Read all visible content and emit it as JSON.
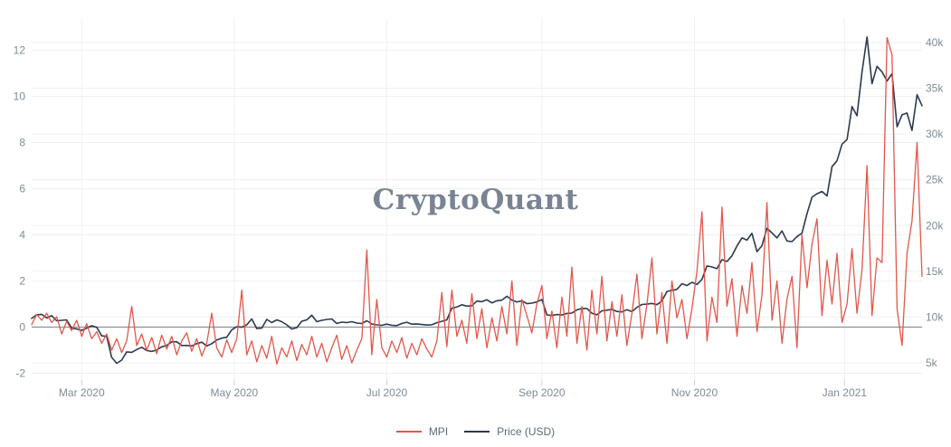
{
  "watermark": "CryptoQuant",
  "chart_data": {
    "type": "line",
    "title": "",
    "x_start": "2020-02-10",
    "step_days": 2,
    "x_ticks": [
      {
        "label": "Mar 2020",
        "day": 20
      },
      {
        "label": "May 2020",
        "day": 81
      },
      {
        "label": "Jul 2020",
        "day": 142
      },
      {
        "label": "Sep 2020",
        "day": 204
      },
      {
        "label": "Nov 2020",
        "day": 265
      },
      {
        "label": "Jan 2021",
        "day": 325
      }
    ],
    "left_axis": {
      "tick_labels": [
        "12",
        "10",
        "8",
        "6",
        "4",
        "2",
        "0",
        "-2"
      ],
      "tick_values": [
        12,
        10,
        8,
        6,
        4,
        2,
        0,
        -2
      ],
      "zero_plot_line": 0
    },
    "right_axis": {
      "tick_labels": [
        "40k",
        "35k",
        "30k",
        "25k",
        "20k",
        "15k",
        "10k",
        "5k"
      ],
      "tick_values": [
        40000,
        35000,
        30000,
        25000,
        20000,
        15000,
        10000,
        5000
      ]
    },
    "grid": true,
    "legend_position": "bottom",
    "legend": [
      {
        "label": "MPI",
        "color": "#e2574a"
      },
      {
        "label": "Price (USD)",
        "color": "#2c3a4e"
      }
    ],
    "series": [
      {
        "name": "MPI",
        "axis": "left",
        "color": "#e2574a",
        "values": [
          0.1,
          0.55,
          0.3,
          0.6,
          0.2,
          0.45,
          -0.3,
          0.25,
          -0.15,
          0.3,
          -0.4,
          0.15,
          -0.5,
          -0.2,
          -0.7,
          -0.3,
          -1.0,
          -0.5,
          -1.1,
          -0.6,
          0.9,
          -0.8,
          -0.3,
          -1.0,
          -0.45,
          -1.15,
          -0.35,
          -0.95,
          -0.4,
          -1.2,
          -0.6,
          -0.25,
          -1.05,
          -0.5,
          -1.25,
          -0.7,
          0.6,
          -0.9,
          -1.3,
          -0.55,
          -1.1,
          -0.5,
          1.6,
          -1.2,
          -0.6,
          -1.5,
          -0.8,
          -1.35,
          -0.4,
          -1.6,
          -0.9,
          -1.3,
          -0.6,
          -1.45,
          -0.75,
          -1.2,
          -0.4,
          -1.3,
          -0.7,
          -1.5,
          -0.9,
          -0.35,
          -1.4,
          -0.8,
          -1.55,
          -1.0,
          -0.5,
          3.35,
          -1.2,
          1.2,
          -0.9,
          -1.3,
          -0.6,
          -1.1,
          -0.45,
          -1.35,
          -0.7,
          -1.2,
          -0.5,
          -0.95,
          -1.3,
          -0.6,
          1.5,
          -0.85,
          1.6,
          -0.4,
          0.3,
          -0.7,
          1.45,
          -0.5,
          0.8,
          -0.9,
          0.4,
          -0.6,
          0.9,
          -0.3,
          2.0,
          -0.8,
          1.2,
          0.5,
          -0.25,
          1.0,
          1.8,
          -0.5,
          0.7,
          -0.9,
          1.3,
          -0.4,
          2.6,
          -0.7,
          0.9,
          -1.0,
          1.6,
          -0.3,
          2.2,
          -0.6,
          1.1,
          -0.4,
          1.4,
          -0.8,
          0.6,
          2.3,
          -0.5,
          1.0,
          3.0,
          -0.3,
          1.5,
          -0.7,
          2.0,
          0.4,
          1.2,
          -0.5,
          0.8,
          2.4,
          5.0,
          -0.6,
          1.3,
          0.2,
          5.2,
          0.9,
          2.1,
          -0.4,
          1.8,
          0.6,
          2.8,
          -0.2,
          1.4,
          5.4,
          0.3,
          2.0,
          -0.7,
          1.2,
          2.2,
          -0.9,
          4.0,
          1.7,
          3.6,
          4.7,
          0.5,
          2.9,
          1.0,
          3.2,
          0.2,
          1.0,
          3.4,
          0.6,
          2.5,
          7.0,
          0.5,
          3.0,
          2.8,
          12.55,
          11.8,
          0.8,
          -0.8,
          3.2,
          4.6,
          8.0,
          2.2
        ]
      },
      {
        "name": "Price (USD)",
        "axis": "right",
        "color": "#2c3a4e",
        "values": [
          9850,
          10250,
          10300,
          9900,
          10150,
          9600,
          9650,
          9700,
          8800,
          8700,
          8550,
          8800,
          9050,
          8900,
          7950,
          7900,
          5600,
          4950,
          5300,
          6200,
          6150,
          6450,
          6700,
          6350,
          6250,
          6400,
          6750,
          6900,
          7300,
          7300,
          6900,
          6900,
          6850,
          7100,
          7250,
          6850,
          7100,
          7500,
          7700,
          7800,
          8600,
          8950,
          8900,
          9150,
          9800,
          8750,
          8800,
          9750,
          9400,
          9700,
          9500,
          9150,
          8700,
          8850,
          9550,
          9700,
          10200,
          9500,
          9650,
          9750,
          9800,
          9300,
          9450,
          9400,
          9500,
          9350,
          9300,
          9600,
          9250,
          9150,
          9100,
          9230,
          9100,
          9070,
          9300,
          9440,
          9230,
          9240,
          9190,
          9130,
          9160,
          9390,
          9540,
          9700,
          10980,
          11100,
          11350,
          11200,
          11240,
          11750,
          11680,
          11890,
          11560,
          11780,
          11850,
          12280,
          11860,
          11650,
          11770,
          11470,
          11530,
          11650,
          11920,
          10240,
          10170,
          10280,
          10230,
          10400,
          10440,
          10780,
          10950,
          10940,
          10420,
          10250,
          10690,
          10750,
          10840,
          10620,
          10570,
          10800,
          10600,
          11060,
          11380,
          11420,
          11500,
          11360,
          11760,
          12800,
          12930,
          13030,
          13650,
          13440,
          13800,
          13560,
          14130,
          15590,
          15480,
          15290,
          16280,
          16070,
          16690,
          17770,
          18650,
          18410,
          19150,
          17150,
          17800,
          19700,
          19200,
          18650,
          19420,
          18320,
          18250,
          18800,
          19170,
          21310,
          23100,
          23480,
          23730,
          23240,
          26440,
          27080,
          28900,
          29400,
          33000,
          32000,
          36800,
          40600,
          35500,
          37400,
          36800,
          35800,
          36600,
          30800,
          32100,
          32300,
          30400,
          34300,
          33100
        ]
      }
    ],
    "colors": {
      "grid": "#eef0f2",
      "zero_line": "#8c9196",
      "axis_text": "#7f8b97",
      "tick_mark": "#ccd1d6",
      "watermark": "#6b7687",
      "legend_text": "#5f6a75"
    }
  }
}
